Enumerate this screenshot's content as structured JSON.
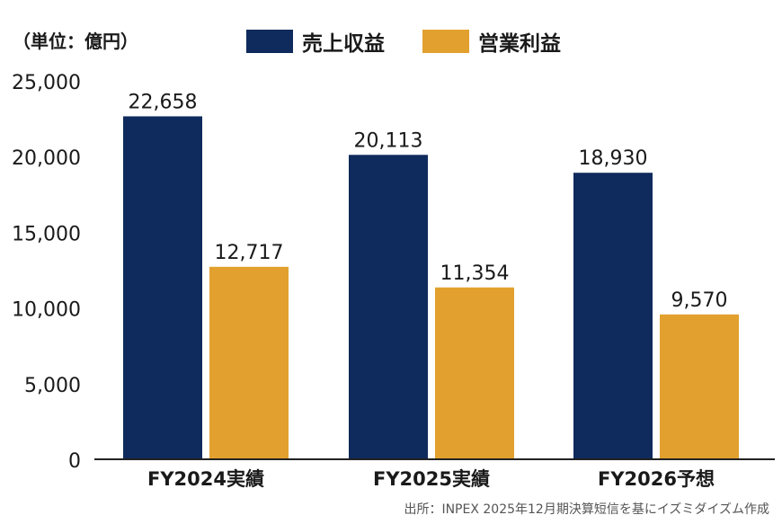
{
  "unit_label": "（単位：億円）",
  "source_note": "出所：INPEX 2025年12月期決算短信を基にイズミダイズム作成",
  "colors": {
    "revenue": "#0f2a5c",
    "operating_profit": "#e2a12e",
    "axis": "#222222"
  },
  "chart_data": {
    "type": "bar",
    "title": "",
    "xlabel": "",
    "ylabel": "",
    "categories": [
      "FY2024実績",
      "FY2025実績",
      "FY2026予想"
    ],
    "series": [
      {
        "name": "売上収益",
        "values": [
          22658,
          20113,
          18930
        ],
        "labels": [
          "22,658",
          "20,113",
          "18,930"
        ]
      },
      {
        "name": "営業利益",
        "values": [
          12717,
          11354,
          9570
        ],
        "labels": [
          "12,717",
          "11,354",
          "9,570"
        ]
      }
    ],
    "ylim": [
      0,
      25000
    ],
    "yticks": [
      0,
      5000,
      10000,
      15000,
      20000,
      25000
    ],
    "ytick_labels": [
      "0",
      "5,000",
      "10,000",
      "15,000",
      "20,000",
      "25,000"
    ],
    "grid": false,
    "legend_position": "top"
  }
}
